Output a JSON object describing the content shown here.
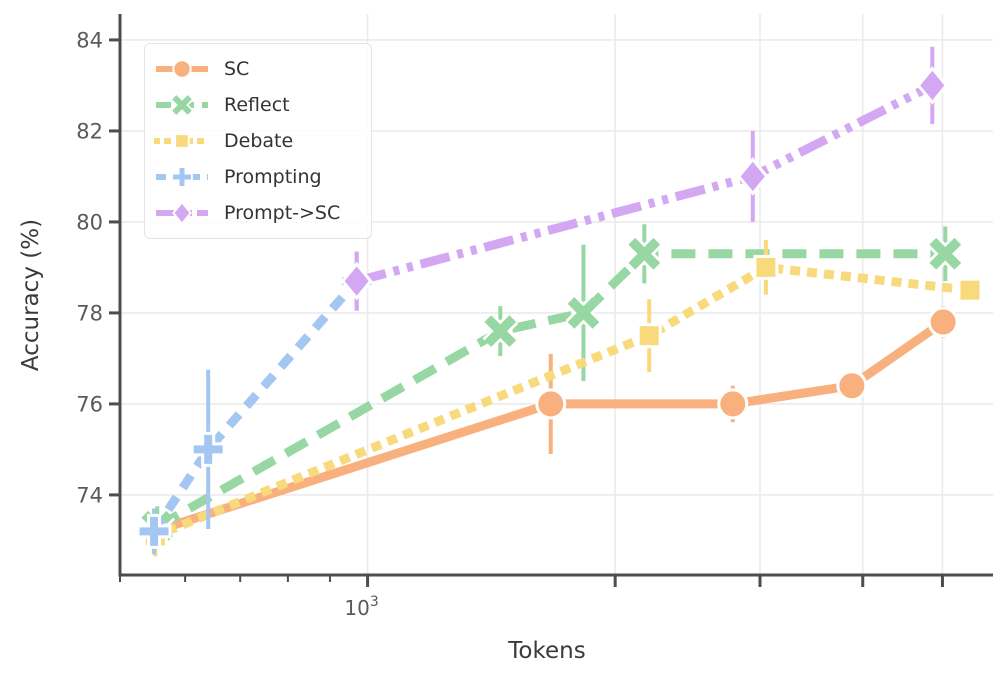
{
  "chart_data": {
    "type": "line",
    "title": "",
    "xlabel": "Tokens",
    "ylabel": "Accuracy (%)",
    "x_scale": "log",
    "xlim": [
      500,
      5760
    ],
    "ylim": [
      72.24,
      84.57
    ],
    "grid": true,
    "legend_position": "upper-left",
    "yticks": [
      74,
      76,
      78,
      80,
      82,
      84
    ],
    "xticks": {
      "labeled": [
        {
          "value": 1000,
          "base": "10",
          "exponent": "3"
        }
      ],
      "unlabeled": [
        2000,
        3000,
        4000,
        5000
      ],
      "minor": [
        500,
        600,
        700,
        800,
        900
      ]
    },
    "series": [
      {
        "name": "SC",
        "color": "#f8b17e",
        "line_style": "solid",
        "marker": "circle",
        "x": [
          550,
          1670,
          2780,
          3880,
          5010
        ],
        "y": [
          73.2,
          76.0,
          76.0,
          76.4,
          77.8
        ],
        "yerr": [
          0.5,
          1.1,
          0.4,
          0.3,
          0.35
        ]
      },
      {
        "name": "Reflect",
        "color": "#97d7a3",
        "line_style": "dashed-long",
        "marker": "x",
        "x": [
          555,
          1450,
          1830,
          2170,
          5040
        ],
        "y": [
          73.3,
          77.6,
          78.0,
          79.3,
          79.3
        ],
        "yerr": [
          0.45,
          0.55,
          1.5,
          0.65,
          0.6
        ]
      },
      {
        "name": "Debate",
        "color": "#f8da7d",
        "line_style": "dotted",
        "marker": "square",
        "x": [
          552,
          2200,
          3050,
          5400
        ],
        "y": [
          73.1,
          77.5,
          79.0,
          78.5
        ],
        "yerr": [
          0.45,
          0.8,
          0.6,
          0
        ]
      },
      {
        "name": "Prompting",
        "color": "#a4c6f2",
        "line_style": "dashed",
        "marker": "plus",
        "x": [
          550,
          640,
          970
        ],
        "y": [
          73.2,
          75.0,
          78.7
        ],
        "yerr": [
          0.5,
          1.75,
          0.65
        ]
      },
      {
        "name": "Prompt->SC",
        "color": "#d3a7f1",
        "line_style": "dash-dot-dot",
        "marker": "diamond",
        "x": [
          970,
          2940,
          4860
        ],
        "y": [
          78.7,
          81.0,
          83.0
        ],
        "yerr": [
          0.65,
          1.0,
          0.85
        ]
      }
    ],
    "style": {
      "axis_color": "#4d4d4d",
      "tick_label_color": "#5a5a5a",
      "label_color": "#3a3a3a",
      "grid_color": "#ebebeb"
    }
  }
}
